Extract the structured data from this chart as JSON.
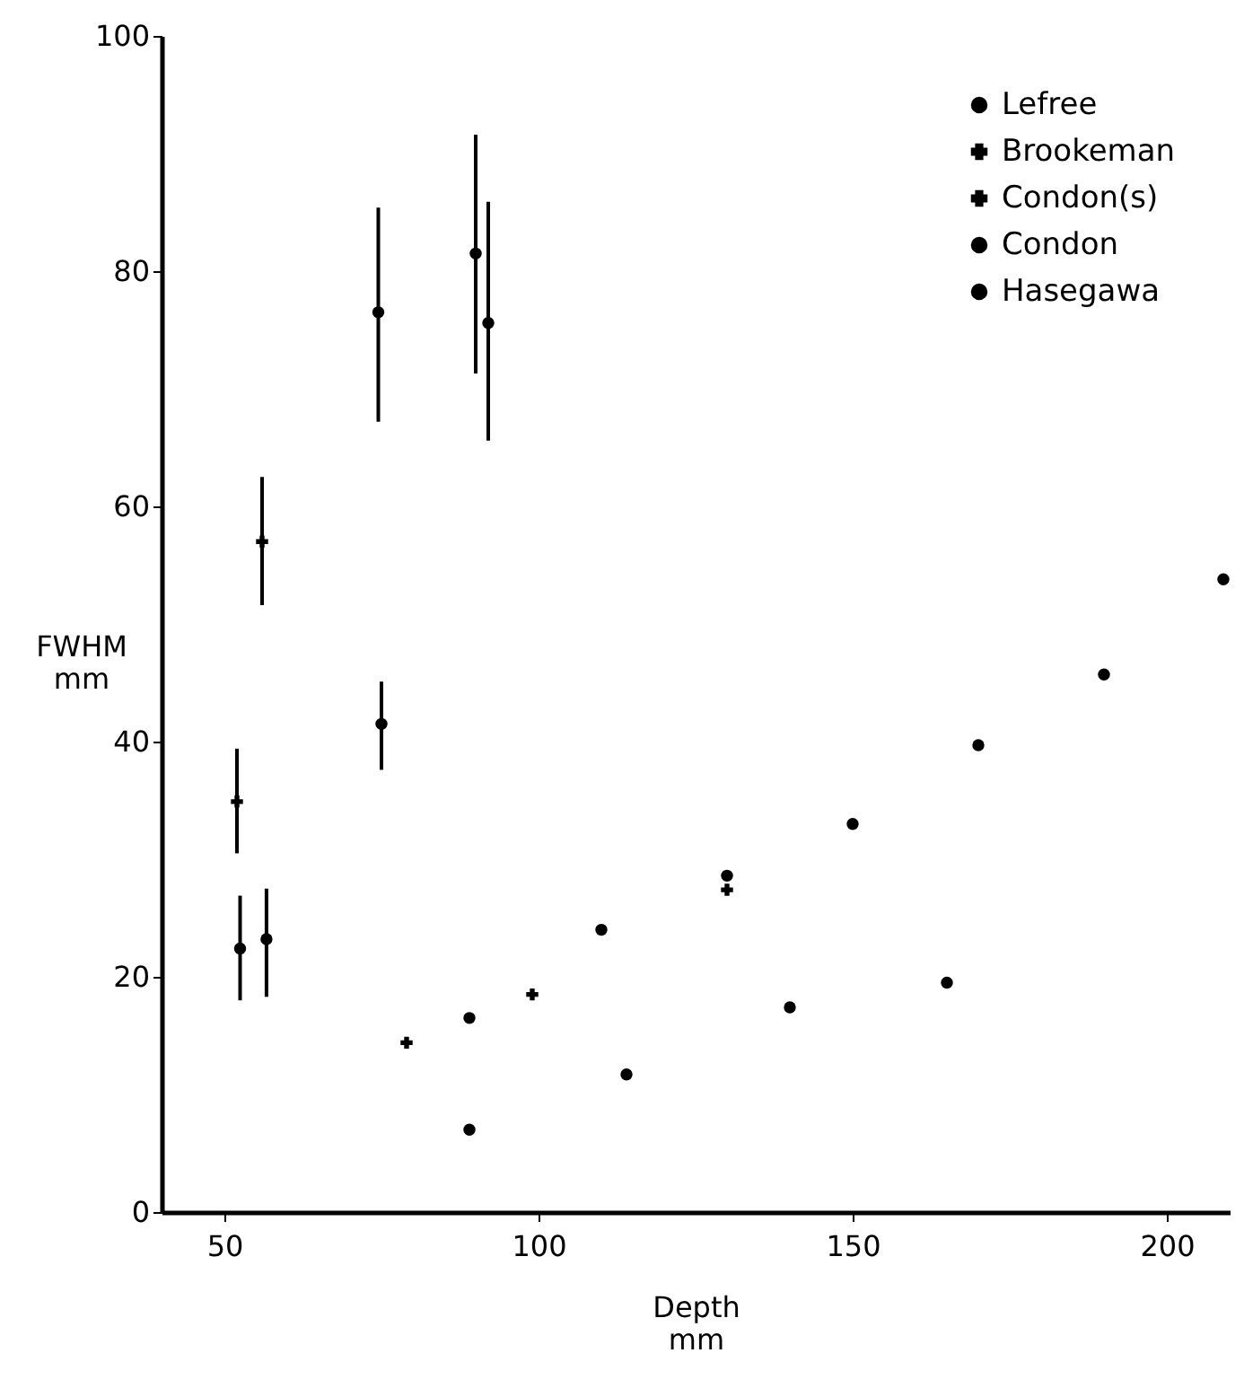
{
  "chart_data": {
    "type": "scatter",
    "xlabel": "Depth\nmm",
    "ylabel": "FWHM\nmm",
    "xlim": [
      40,
      210
    ],
    "xticks": [
      50,
      100,
      150,
      200
    ],
    "ylim": [
      0,
      100
    ],
    "yticks": [
      0,
      20,
      40,
      60,
      80,
      100
    ],
    "grid": false,
    "legend": "top right",
    "series": [
      {
        "name": "Lefree",
        "color": "#000000",
        "marker": "circle",
        "x": [
          89,
          114,
          140,
          165
        ],
        "values": [
          7,
          11.7,
          17.4,
          19.5
        ]
      },
      {
        "name": "Brookeman",
        "color": "#000000",
        "marker": "cross",
        "x": [
          79,
          99,
          130
        ],
        "values": [
          14.4,
          18.5,
          27.4
        ]
      },
      {
        "name": "Condon(s)",
        "color": "#000000",
        "marker": "cross",
        "x": [
          52,
          56
        ],
        "values": [
          34.9,
          57
        ],
        "errors": [
          [
            30.5,
            39.4
          ],
          [
            51.6,
            62.5
          ]
        ]
      },
      {
        "name": "Condon",
        "color": "#000000",
        "marker": "circle",
        "x": [
          52.5,
          56.7,
          75,
          74.5,
          90,
          92
        ],
        "values": [
          22.4,
          23.2,
          41.5,
          76.5,
          81.5,
          75.6
        ],
        "errors": [
          [
            18,
            26.9
          ],
          [
            18.3,
            27.5
          ],
          [
            37.6,
            45.1
          ],
          [
            67.2,
            85.4
          ],
          [
            71.3,
            91.6
          ],
          [
            65.6,
            85.9
          ]
        ]
      },
      {
        "name": "Hasegawa",
        "color": "#000000",
        "marker": "circle",
        "x": [
          89,
          110,
          130,
          150,
          170,
          190,
          209
        ],
        "values": [
          16.5,
          24,
          28.6,
          33,
          39.7,
          45.7,
          53.8
        ]
      }
    ]
  }
}
